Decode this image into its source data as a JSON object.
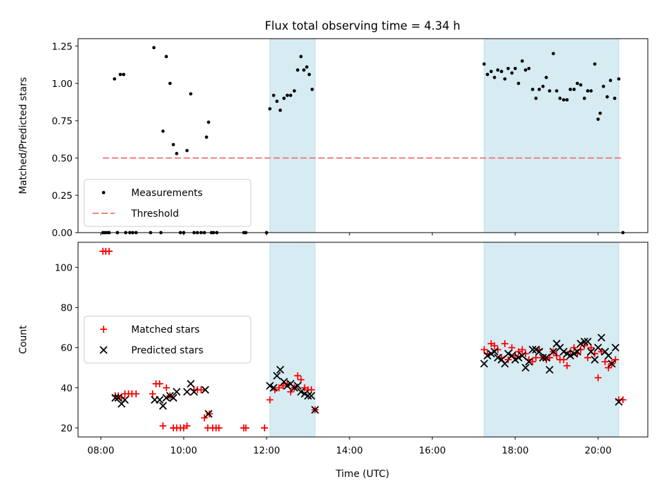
{
  "figure": {
    "title": "Flux total observing time = 4.34 h",
    "xlabel": "Time (UTC)"
  },
  "colors": {
    "shade": "#add8e6",
    "measurement": "#000000",
    "threshold": "#f08080",
    "matched": "#ff0000",
    "predicted": "#000000",
    "legend_border": "#cccccc"
  },
  "chart_data": [
    {
      "type": "scatter",
      "title": "Flux total observing time = 4.34 h",
      "xlabel": "Time (UTC)",
      "ylabel": "Matched/Predicted stars",
      "x_unit": "hours UTC",
      "xlim": [
        7.45,
        21.2
      ],
      "ylim": [
        0,
        1.3
      ],
      "grid": false,
      "legend_position": "lower-left",
      "xticks": [
        {
          "v": 8,
          "label": "08:00"
        },
        {
          "v": 10,
          "label": "10:00"
        },
        {
          "v": 12,
          "label": "12:00"
        },
        {
          "v": 14,
          "label": "14:00"
        },
        {
          "v": 16,
          "label": "16:00"
        },
        {
          "v": 18,
          "label": "18:00"
        },
        {
          "v": 20,
          "label": "20:00"
        }
      ],
      "yticks": [
        {
          "v": 0,
          "label": "0.00"
        },
        {
          "v": 0.25,
          "label": "0.25"
        },
        {
          "v": 0.5,
          "label": "0.50"
        },
        {
          "v": 0.75,
          "label": "0.75"
        },
        {
          "v": 1.0,
          "label": "1.00"
        },
        {
          "v": 1.25,
          "label": "1.25"
        }
      ],
      "shaded_intervals": [
        [
          12.08,
          13.17
        ],
        [
          17.25,
          20.5
        ]
      ],
      "threshold": {
        "name": "Threshold",
        "y": 0.5,
        "x": [
          8.05,
          20.6
        ]
      },
      "series": [
        {
          "name": "Measurements",
          "x": [
            8.05,
            8.1,
            8.15,
            8.2,
            8.33,
            8.4,
            8.47,
            8.55,
            8.6,
            8.7,
            8.77,
            8.85,
            9.2,
            9.28,
            9.45,
            9.5,
            9.58,
            9.67,
            9.75,
            9.83,
            9.92,
            10.0,
            10.08,
            10.17,
            10.25,
            10.33,
            10.42,
            10.5,
            10.55,
            10.6,
            10.67,
            10.72,
            10.8,
            11.45,
            11.5,
            12.0,
            12.08,
            12.17,
            12.25,
            12.33,
            12.42,
            12.5,
            12.58,
            12.67,
            12.75,
            12.83,
            12.9,
            12.97,
            13.03,
            13.1,
            17.25,
            17.33,
            17.42,
            17.5,
            17.58,
            17.67,
            17.75,
            17.83,
            17.92,
            18.0,
            18.08,
            18.17,
            18.25,
            18.33,
            18.42,
            18.5,
            18.58,
            18.67,
            18.75,
            18.83,
            18.92,
            19.0,
            19.08,
            19.17,
            19.25,
            19.33,
            19.42,
            19.5,
            19.58,
            19.67,
            19.75,
            19.83,
            19.92,
            20.0,
            20.05,
            20.13,
            20.22,
            20.3,
            20.4,
            20.5,
            20.6
          ],
          "y": [
            0.0,
            0.0,
            0.0,
            0.0,
            1.03,
            0.0,
            1.06,
            1.06,
            0.0,
            0.0,
            0.0,
            0.0,
            0.0,
            1.24,
            0.0,
            0.68,
            1.18,
            1.0,
            0.59,
            0.53,
            0.0,
            0.0,
            0.55,
            0.93,
            0.0,
            0.0,
            0.0,
            0.0,
            0.64,
            0.74,
            0.0,
            0.0,
            0.0,
            0.0,
            0.0,
            0.0,
            0.83,
            0.92,
            0.88,
            0.82,
            0.9,
            0.92,
            0.92,
            0.95,
            1.09,
            1.18,
            1.09,
            1.11,
            1.06,
            0.96,
            1.13,
            1.06,
            1.08,
            1.04,
            1.09,
            1.08,
            1.03,
            1.1,
            1.07,
            1.1,
            1.0,
            1.15,
            1.09,
            1.1,
            0.96,
            0.9,
            0.96,
            0.98,
            1.04,
            0.95,
            1.2,
            0.95,
            0.9,
            0.89,
            0.89,
            0.96,
            0.96,
            1.0,
            0.99,
            0.9,
            0.95,
            0.95,
            1.13,
            0.76,
            0.8,
            0.98,
            0.91,
            1.02,
            0.9,
            1.03,
            0.0
          ]
        }
      ]
    },
    {
      "type": "scatter",
      "xlabel": "Time (UTC)",
      "ylabel": "Count",
      "x_unit": "hours UTC",
      "xlim": [
        7.45,
        21.2
      ],
      "ylim": [
        15.5,
        112.5
      ],
      "grid": false,
      "legend_position": "center-left",
      "xticks": [
        {
          "v": 8,
          "label": "08:00"
        },
        {
          "v": 10,
          "label": "10:00"
        },
        {
          "v": 12,
          "label": "12:00"
        },
        {
          "v": 14,
          "label": "14:00"
        },
        {
          "v": 16,
          "label": "16:00"
        },
        {
          "v": 18,
          "label": "18:00"
        },
        {
          "v": 20,
          "label": "20:00"
        }
      ],
      "yticks": [
        {
          "v": 20,
          "label": "20"
        },
        {
          "v": 40,
          "label": "40"
        },
        {
          "v": 60,
          "label": "60"
        },
        {
          "v": 80,
          "label": "80"
        },
        {
          "v": 100,
          "label": "100"
        }
      ],
      "shaded_intervals": [
        [
          12.08,
          13.17
        ],
        [
          17.25,
          20.5
        ]
      ],
      "series": [
        {
          "name": "Matched stars",
          "marker": "plus",
          "x": [
            8.05,
            8.12,
            8.2,
            8.35,
            8.42,
            8.5,
            8.58,
            8.67,
            8.75,
            8.85,
            9.25,
            9.33,
            9.42,
            9.5,
            9.58,
            9.67,
            9.75,
            9.83,
            9.92,
            10.0,
            10.08,
            10.25,
            10.33,
            10.42,
            10.5,
            10.58,
            10.62,
            10.7,
            10.78,
            10.85,
            11.45,
            11.5,
            11.95,
            12.08,
            12.2,
            12.3,
            12.4,
            12.5,
            12.58,
            12.67,
            12.75,
            12.83,
            12.92,
            13.0,
            13.08,
            13.17,
            17.25,
            17.33,
            17.42,
            17.5,
            17.58,
            17.67,
            17.75,
            17.83,
            17.92,
            18.0,
            18.08,
            18.17,
            18.25,
            18.33,
            18.42,
            18.5,
            18.58,
            18.67,
            18.75,
            18.83,
            18.92,
            19.0,
            19.08,
            19.17,
            19.25,
            19.33,
            19.42,
            19.5,
            19.58,
            19.67,
            19.75,
            19.83,
            19.92,
            20.0,
            20.08,
            20.17,
            20.25,
            20.33,
            20.42,
            20.5,
            20.6
          ],
          "y": [
            108,
            108,
            108,
            36,
            36,
            35,
            37,
            37,
            37,
            37,
            37,
            42,
            42,
            21,
            40,
            36,
            20,
            20,
            20,
            20,
            21,
            39,
            39,
            39,
            25,
            20,
            27,
            20,
            20,
            20,
            20,
            20,
            20,
            34,
            39,
            40,
            41,
            42,
            38,
            40,
            46,
            44,
            40,
            39,
            39,
            29,
            59,
            57,
            62,
            61,
            59,
            55,
            62,
            54,
            60,
            56,
            58,
            59,
            57,
            54,
            53,
            55,
            59,
            55,
            54,
            55,
            58,
            56,
            54,
            54,
            51,
            58,
            60,
            57,
            59,
            61,
            55,
            60,
            57,
            45,
            58,
            53,
            50,
            52,
            54,
            34,
            34
          ]
        },
        {
          "name": "Predicted stars",
          "marker": "x",
          "x": [
            8.35,
            8.42,
            8.5,
            8.58,
            9.3,
            9.42,
            9.5,
            9.58,
            9.67,
            9.75,
            9.83,
            10.08,
            10.17,
            10.25,
            10.52,
            10.6,
            12.08,
            12.17,
            12.25,
            12.33,
            12.42,
            12.5,
            12.58,
            12.67,
            12.75,
            12.83,
            12.92,
            13.0,
            13.08,
            13.17,
            17.25,
            17.33,
            17.42,
            17.5,
            17.58,
            17.67,
            17.75,
            17.83,
            17.92,
            18.0,
            18.08,
            18.17,
            18.25,
            18.33,
            18.42,
            18.5,
            18.58,
            18.67,
            18.75,
            18.83,
            18.92,
            19.0,
            19.08,
            19.17,
            19.25,
            19.33,
            19.42,
            19.5,
            19.58,
            19.67,
            19.75,
            19.83,
            19.92,
            20.0,
            20.08,
            20.17,
            20.25,
            20.33,
            20.42,
            20.5
          ],
          "y": [
            35,
            35,
            32,
            34,
            34,
            34,
            31,
            35,
            36,
            35,
            38,
            38,
            42,
            38,
            39,
            27,
            41,
            40,
            46,
            49,
            43,
            41,
            42,
            40,
            41,
            38,
            37,
            36,
            36,
            29,
            52,
            56,
            57,
            58,
            55,
            54,
            52,
            57,
            56,
            54,
            55,
            56,
            50,
            53,
            59,
            59,
            58,
            55,
            55,
            49,
            58,
            62,
            60,
            58,
            57,
            56,
            57,
            58,
            62,
            63,
            63,
            58,
            54,
            60,
            65,
            58,
            56,
            52,
            60,
            33
          ]
        }
      ]
    }
  ]
}
